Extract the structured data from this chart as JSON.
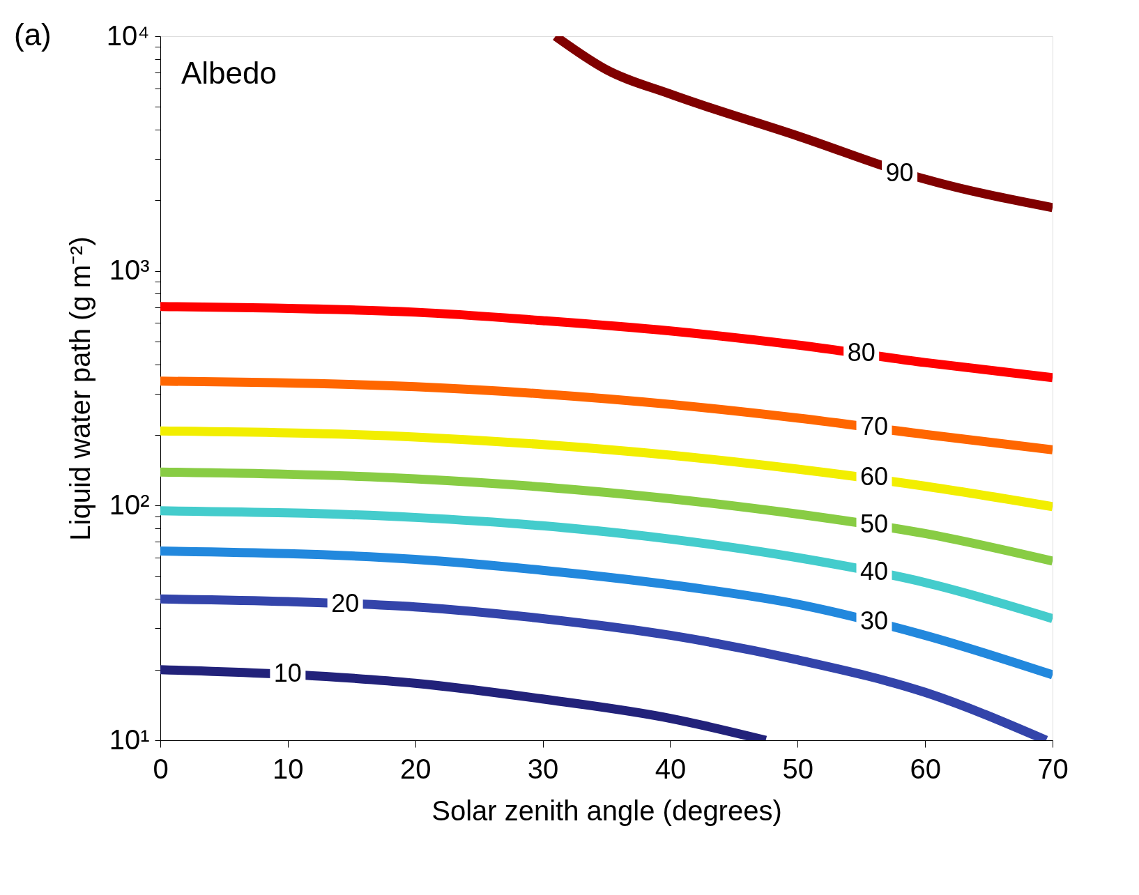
{
  "chart_data": {
    "type": "line",
    "xlabel": "Solar zenith angle (degrees)",
    "ylabel": "Liquid water path (g m⁻²)",
    "log": "y",
    "xlim": [
      0,
      70
    ],
    "xticks": [
      0,
      10,
      20,
      30,
      40,
      50,
      60,
      70
    ],
    "ylim": [
      10,
      10000
    ],
    "yticks": [
      {
        "value": 10,
        "label": "10¹"
      },
      {
        "value": 20,
        "label": null
      },
      {
        "value": 30,
        "label": null
      },
      {
        "value": 40,
        "label": null
      },
      {
        "value": 50,
        "label": null
      },
      {
        "value": 60,
        "label": null
      },
      {
        "value": 70,
        "label": null
      },
      {
        "value": 80,
        "label": null
      },
      {
        "value": 90,
        "label": null
      },
      {
        "value": 100,
        "label": "10²"
      },
      {
        "value": 200,
        "label": null
      },
      {
        "value": 300,
        "label": null
      },
      {
        "value": 400,
        "label": null
      },
      {
        "value": 500,
        "label": null
      },
      {
        "value": 600,
        "label": null
      },
      {
        "value": 700,
        "label": null
      },
      {
        "value": 800,
        "label": null
      },
      {
        "value": 900,
        "label": null
      },
      {
        "value": 1000,
        "label": "10³"
      },
      {
        "value": 2000,
        "label": null
      },
      {
        "value": 3000,
        "label": null
      },
      {
        "value": 4000,
        "label": null
      },
      {
        "value": 5000,
        "label": null
      },
      {
        "value": 6000,
        "label": null
      },
      {
        "value": 7000,
        "label": null
      },
      {
        "value": 8000,
        "label": null
      },
      {
        "value": 9000,
        "label": null
      },
      {
        "value": 10000,
        "label": "10⁴"
      }
    ],
    "grid": false,
    "marker": "none",
    "line_style": "solid",
    "series": [
      {
        "color": "#800000",
        "x": [
          31,
          35,
          40,
          50,
          60,
          70
        ],
        "values": [
          10000,
          7200,
          5670,
          3760,
          2460,
          1860
        ]
      },
      {
        "color": "#ff0000",
        "x": [
          0,
          20,
          30,
          40,
          50,
          60,
          70
        ],
        "values": [
          705,
          667,
          614,
          555,
          483,
          407,
          351
        ]
      },
      {
        "color": "#ff6600",
        "x": [
          0,
          20,
          30,
          40,
          50,
          60,
          70
        ],
        "values": [
          339,
          321,
          299,
          270,
          236,
          201,
          173
        ]
      },
      {
        "color": "#f2ee00",
        "x": [
          0,
          20,
          30,
          40,
          50,
          60,
          70
        ],
        "values": [
          208,
          196,
          182,
          164,
          143,
          121,
          99
        ]
      },
      {
        "color": "#88cc44",
        "x": [
          0,
          20,
          30,
          40,
          50,
          60,
          70
        ],
        "values": [
          139,
          130,
          120,
          107,
          92,
          76,
          58
        ]
      },
      {
        "color": "#44cccc",
        "x": [
          0,
          20,
          30,
          40,
          50,
          60,
          70
        ],
        "values": [
          95,
          89,
          82,
          72,
          60,
          47,
          33
        ]
      },
      {
        "color": "#2288dd",
        "x": [
          0,
          20,
          30,
          40,
          50,
          60,
          70
        ],
        "values": [
          64,
          59,
          53,
          46,
          38,
          28,
          19
        ]
      },
      {
        "color": "#3344aa",
        "x": [
          0,
          10,
          20,
          30,
          40,
          50,
          60,
          69.5
        ],
        "values": [
          40,
          39,
          37,
          33,
          28,
          22,
          16,
          10
        ]
      },
      {
        "color": "#22227a",
        "x": [
          0,
          13,
          20,
          30,
          40,
          47.5
        ],
        "values": [
          20,
          18.7,
          17.5,
          15,
          12.4,
          10
        ]
      }
    ],
    "annotations": [
      "(a)",
      "Albedo",
      {
        "text": "90",
        "x": 58,
        "y": 2600
      },
      {
        "text": "80",
        "x": 55,
        "y": 445
      },
      {
        "text": "70",
        "x": 56,
        "y": 215
      },
      {
        "text": "60",
        "x": 56,
        "y": 132
      },
      {
        "text": "50",
        "x": 56,
        "y": 83
      },
      {
        "text": "40",
        "x": 56,
        "y": 52
      },
      {
        "text": "30",
        "x": 56,
        "y": 32
      },
      {
        "text": "20",
        "x": 14.5,
        "y": 38
      },
      {
        "text": "10",
        "x": 10,
        "y": 19.1
      }
    ]
  }
}
